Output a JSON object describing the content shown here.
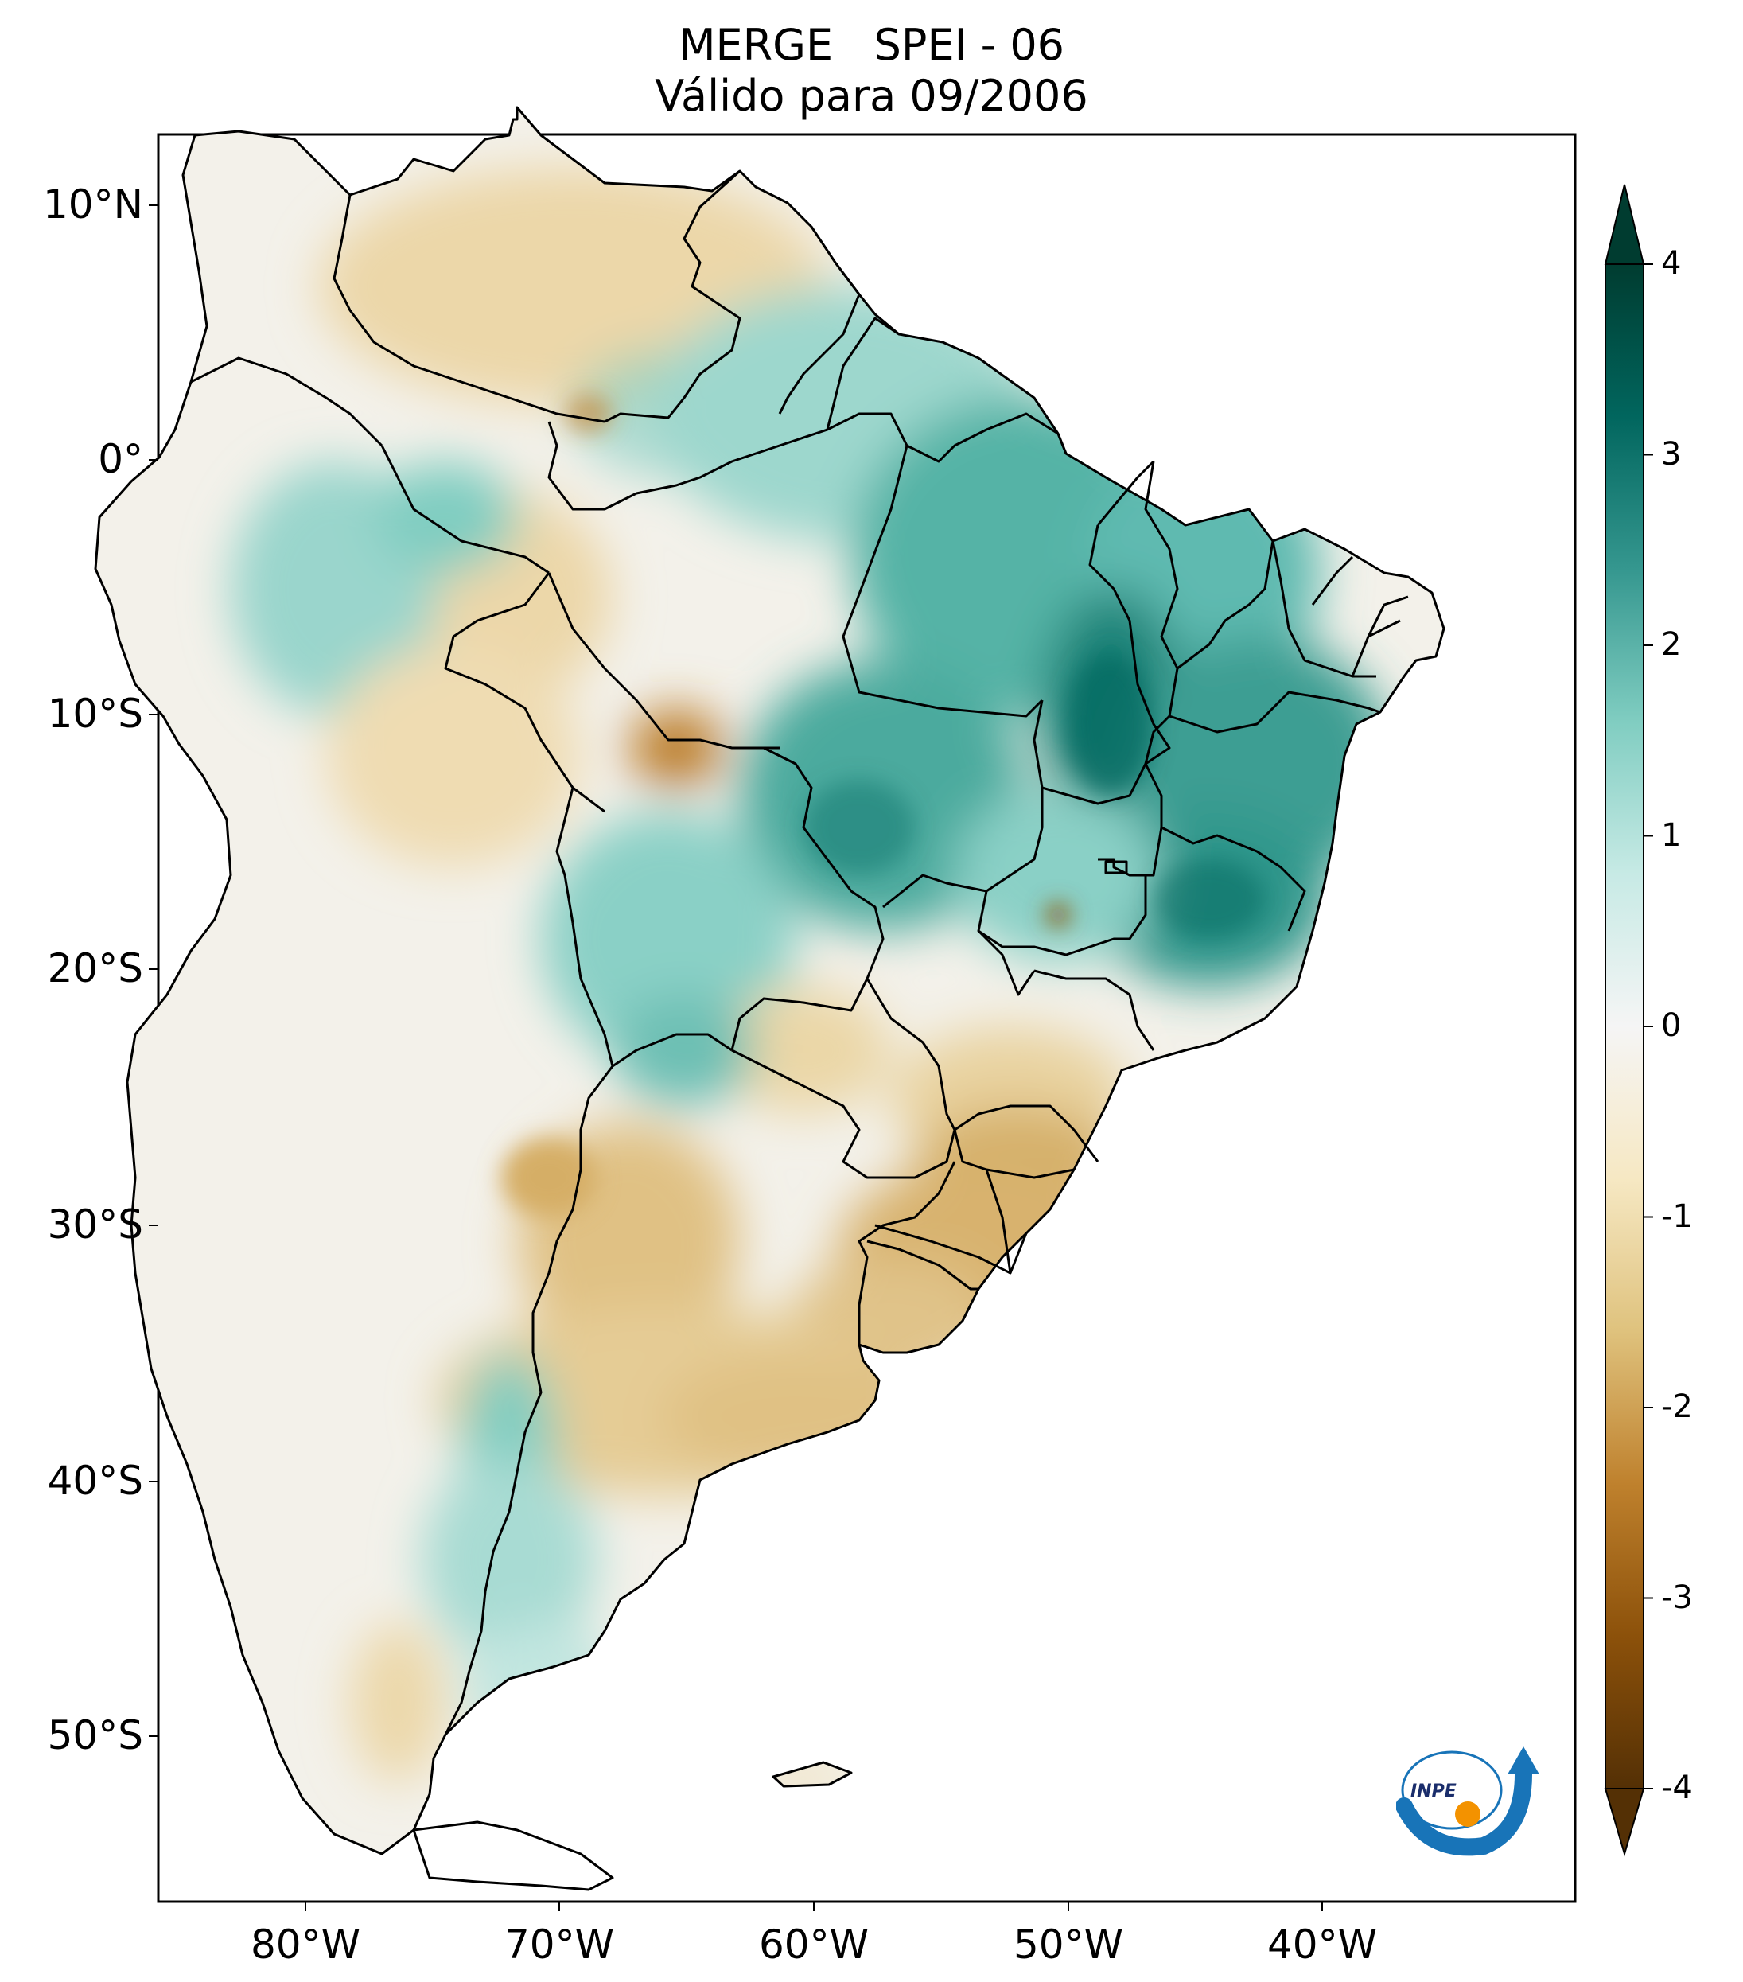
{
  "title": {
    "line1": "MERGE   SPEI - 06",
    "line2": "Válido para 09/2006"
  },
  "axes": {
    "lat_labels": [
      "10°N",
      "0°",
      "10°S",
      "20°S",
      "30°S",
      "40°S",
      "50°S"
    ],
    "lon_labels": [
      "80°W",
      "70°W",
      "60°W",
      "50°W",
      "40°W"
    ]
  },
  "colorbar": {
    "labels": [
      "4",
      "3",
      "2",
      "1",
      "0",
      "-1",
      "-2",
      "-3",
      "-4"
    ],
    "range": [
      -4,
      4
    ],
    "extend": "both",
    "colormap": "BrBG",
    "colors": [
      "#543005",
      "#8c510a",
      "#bf812d",
      "#dfc27d",
      "#f6e8c3",
      "#f5f5f5",
      "#c7eae5",
      "#80cdc1",
      "#35978f",
      "#01665e",
      "#003c30"
    ]
  },
  "logo": {
    "text": "INPE"
  }
}
